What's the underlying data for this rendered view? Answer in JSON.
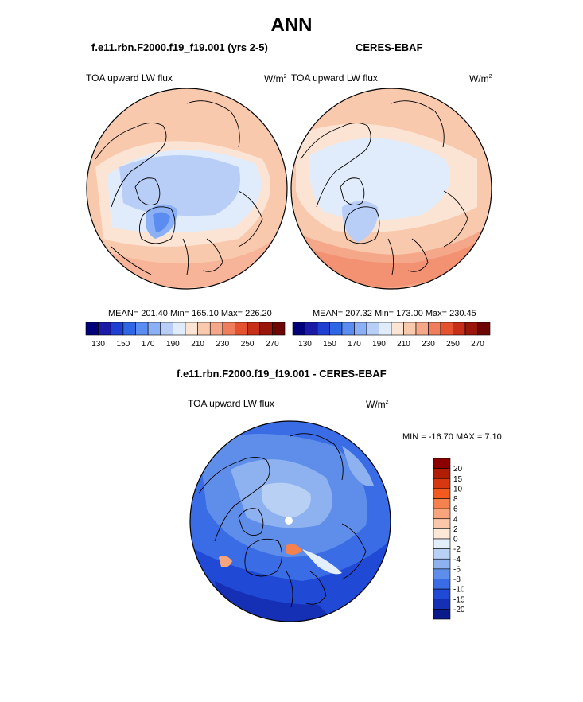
{
  "title": "ANN",
  "panels": [
    {
      "case_title": "f.e11.rbn.F2000.f19_f19.001 (yrs 2-5)",
      "variable": "TOA upward LW flux",
      "units": "W/m",
      "units_exp": "2",
      "stats": "MEAN= 201.40  Min= 165.10  Max= 226.20"
    },
    {
      "case_title": "CERES-EBAF",
      "variable": "TOA upward LW flux",
      "units": "W/m",
      "units_exp": "2",
      "stats": "MEAN= 207.32  Min= 173.00  Max= 230.45"
    }
  ],
  "diff_panel": {
    "title": "f.e11.rbn.F2000.f19_f19.001 - CERES-EBAF",
    "variable": "TOA upward LW flux",
    "units": "W/m",
    "units_exp": "2",
    "minmax": "MIN = -16.70 MAX =   7.10"
  },
  "chart_data": [
    {
      "type": "heatmap",
      "projection": "north polar stereographic",
      "title": "f.e11.rbn.F2000.f19_f19.001 (yrs 2-5)",
      "variable": "TOA upward LW flux",
      "units": "W/m2",
      "mean": 201.4,
      "min": 165.1,
      "max": 226.2,
      "colorbar": {
        "orientation": "horizontal",
        "levels": [
          130,
          140,
          150,
          160,
          170,
          180,
          190,
          200,
          210,
          220,
          230,
          240,
          250,
          260,
          270
        ],
        "tick_labels": [
          "130",
          "150",
          "170",
          "190",
          "210",
          "230",
          "250",
          "270"
        ],
        "colors": [
          "#00007a",
          "#1a1aa6",
          "#1f3fd1",
          "#2f66e6",
          "#5a8cf2",
          "#8cb0f5",
          "#b8cef7",
          "#e0ecfb",
          "#fbe4d4",
          "#f9c9ad",
          "#f5a78a",
          "#f07d5c",
          "#e4522f",
          "#c72f18",
          "#9a150a",
          "#6e0505"
        ]
      }
    },
    {
      "type": "heatmap",
      "projection": "north polar stereographic",
      "title": "CERES-EBAF",
      "variable": "TOA upward LW flux",
      "units": "W/m2",
      "mean": 207.32,
      "min": 173.0,
      "max": 230.45,
      "colorbar": {
        "orientation": "horizontal",
        "levels": [
          130,
          140,
          150,
          160,
          170,
          180,
          190,
          200,
          210,
          220,
          230,
          240,
          250,
          260,
          270
        ],
        "tick_labels": [
          "130",
          "150",
          "170",
          "190",
          "210",
          "230",
          "250",
          "270"
        ],
        "colors": [
          "#00007a",
          "#1a1aa6",
          "#1f3fd1",
          "#2f66e6",
          "#5a8cf2",
          "#8cb0f5",
          "#b8cef7",
          "#e0ecfb",
          "#fbe4d4",
          "#f9c9ad",
          "#f5a78a",
          "#f07d5c",
          "#e4522f",
          "#c72f18",
          "#9a150a",
          "#6e0505"
        ]
      }
    },
    {
      "type": "heatmap",
      "projection": "north polar stereographic",
      "title": "f.e11.rbn.F2000.f19_f19.001 - CERES-EBAF",
      "variable": "TOA upward LW flux",
      "units": "W/m2",
      "min": -16.7,
      "max": 7.1,
      "colorbar": {
        "orientation": "vertical",
        "tick_labels": [
          "20",
          "15",
          "10",
          "8",
          "6",
          "4",
          "2",
          "0",
          "-2",
          "-4",
          "-6",
          "-8",
          "-10",
          "-15",
          "-20"
        ],
        "colors": [
          "#8b0000",
          "#b01e05",
          "#d8380f",
          "#f45a1e",
          "#f5824e",
          "#f8a57e",
          "#fac7aa",
          "#fde8d8",
          "#e3eefb",
          "#b9d0f5",
          "#8eb2f0",
          "#5f8eea",
          "#3a6ce6",
          "#2049d6",
          "#1530b5",
          "#0a1a8a"
        ]
      }
    }
  ]
}
